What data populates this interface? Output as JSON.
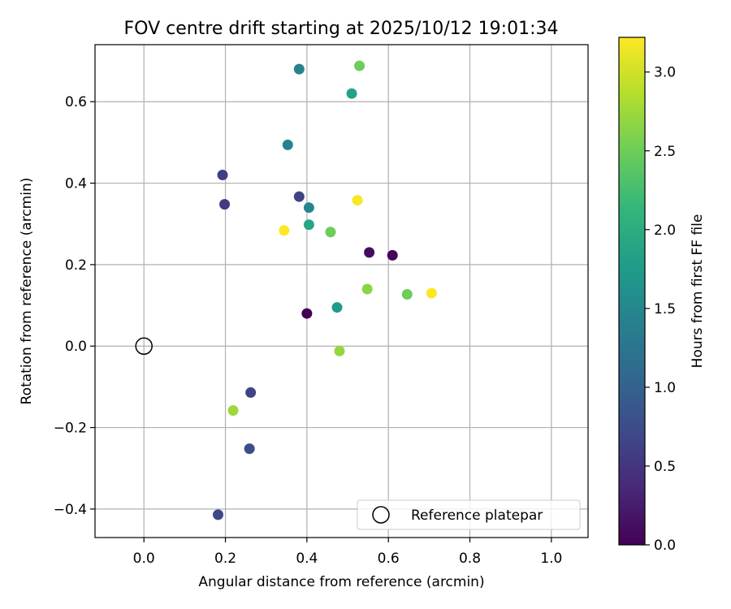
{
  "chart_data": {
    "type": "scatter",
    "title": "FOV centre drift starting at 2025/10/12 19:01:34",
    "xlabel": "Angular distance from reference (arcmin)",
    "ylabel": "Rotation from reference (arcmin)",
    "xlim": [
      -0.12,
      1.09
    ],
    "ylim": [
      -0.47,
      0.74
    ],
    "xticks": [
      0.0,
      0.2,
      0.4,
      0.6,
      0.8,
      1.0
    ],
    "xtick_labels": [
      "0.0",
      "0.2",
      "0.4",
      "0.6",
      "0.8",
      "1.0"
    ],
    "yticks": [
      -0.4,
      -0.2,
      0.0,
      0.2,
      0.4,
      0.6
    ],
    "ytick_labels": [
      "−0.4",
      "−0.2",
      "0.0",
      "0.2",
      "0.4",
      "0.6"
    ],
    "grid": true,
    "colorbar": {
      "label": "Hours from first FF file",
      "range": [
        0.0,
        3.22
      ],
      "ticks": [
        0.0,
        0.5,
        1.0,
        1.5,
        2.0,
        2.5,
        3.0
      ],
      "tick_labels": [
        "0.0",
        "0.5",
        "1.0",
        "1.5",
        "2.0",
        "2.5",
        "3.0"
      ],
      "colormap": "viridis"
    },
    "reference": {
      "x": 0.0,
      "y": 0.0,
      "label": "Reference platepar"
    },
    "legend_position": "lower-right",
    "points": [
      {
        "x": 0.4,
        "y": 0.08,
        "hours": 0.0
      },
      {
        "x": 0.61,
        "y": 0.223,
        "hours": 0.05
      },
      {
        "x": 0.553,
        "y": 0.23,
        "hours": 0.1
      },
      {
        "x": 0.198,
        "y": 0.348,
        "hours": 0.55
      },
      {
        "x": 0.193,
        "y": 0.42,
        "hours": 0.6
      },
      {
        "x": 0.381,
        "y": 0.367,
        "hours": 0.65
      },
      {
        "x": 0.262,
        "y": -0.114,
        "hours": 0.65
      },
      {
        "x": 0.182,
        "y": -0.414,
        "hours": 0.7
      },
      {
        "x": 0.259,
        "y": -0.252,
        "hours": 0.75
      },
      {
        "x": 0.381,
        "y": 0.68,
        "hours": 1.45
      },
      {
        "x": 0.353,
        "y": 0.494,
        "hours": 1.45
      },
      {
        "x": 0.405,
        "y": 0.34,
        "hours": 1.5
      },
      {
        "x": 0.474,
        "y": 0.095,
        "hours": 1.75
      },
      {
        "x": 0.51,
        "y": 0.62,
        "hours": 1.85
      },
      {
        "x": 0.405,
        "y": 0.298,
        "hours": 1.9
      },
      {
        "x": 0.529,
        "y": 0.688,
        "hours": 2.5
      },
      {
        "x": 0.458,
        "y": 0.28,
        "hours": 2.5
      },
      {
        "x": 0.646,
        "y": 0.127,
        "hours": 2.5
      },
      {
        "x": 0.548,
        "y": 0.14,
        "hours": 2.65
      },
      {
        "x": 0.48,
        "y": -0.012,
        "hours": 2.7
      },
      {
        "x": 0.219,
        "y": -0.158,
        "hours": 2.75
      },
      {
        "x": 0.524,
        "y": 0.358,
        "hours": 3.2
      },
      {
        "x": 0.344,
        "y": 0.284,
        "hours": 3.22
      },
      {
        "x": 0.706,
        "y": 0.13,
        "hours": 3.22
      }
    ]
  }
}
